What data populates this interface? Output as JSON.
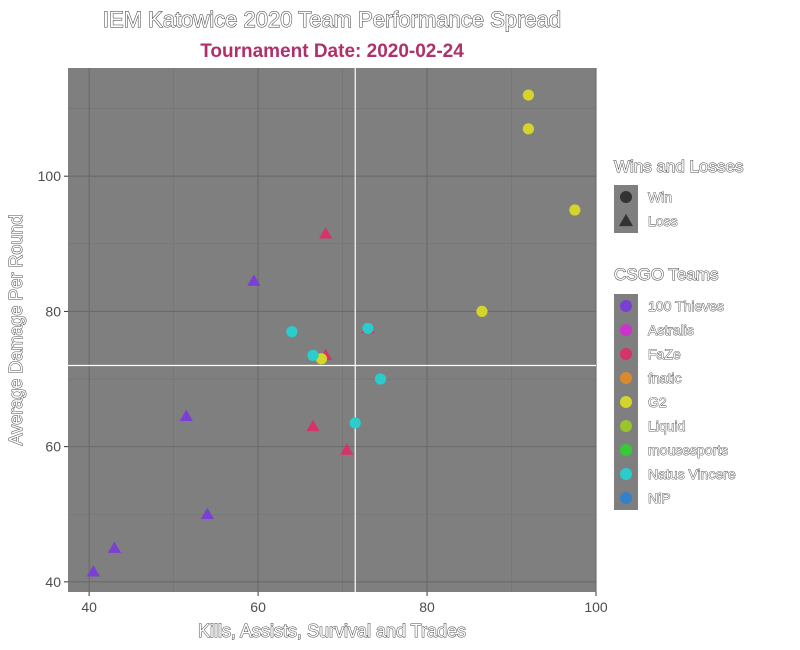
{
  "chart_data": {
    "type": "scatter",
    "title": "IEM Katowice 2020 Team Performance Spread",
    "subtitle": "Tournament Date: 2020-02-24",
    "xlabel": "Kills, Assists, Survival and Trades",
    "ylabel": "Average Damage Per Round",
    "xlim": [
      37.5,
      100
    ],
    "ylim": [
      38.5,
      116
    ],
    "x_ticks": [
      40,
      60,
      80,
      100
    ],
    "y_ticks": [
      40,
      60,
      80,
      100
    ],
    "x_minor_ticks": [
      50,
      70,
      90
    ],
    "y_minor_ticks": [
      50,
      70,
      90,
      110
    ],
    "reference_lines": {
      "x": 71.5,
      "y": 72
    },
    "grid": true,
    "panel_color": "#7f7f7f",
    "legend_position": "right",
    "shape_legend": {
      "title": "Wins and Losses",
      "items": [
        {
          "label": "Win",
          "shape": "circle"
        },
        {
          "label": "Loss",
          "shape": "triangle"
        }
      ]
    },
    "color_legend": {
      "title": "CSGO Teams",
      "items": [
        {
          "label": "100 Thieves",
          "color": "#7b3fd6"
        },
        {
          "label": "Astralis",
          "color": "#cc33cc"
        },
        {
          "label": "FaZe",
          "color": "#d6336b"
        },
        {
          "label": "fnatic",
          "color": "#d98a2b"
        },
        {
          "label": "G2",
          "color": "#d4d42a"
        },
        {
          "label": "Liquid",
          "color": "#99c42a"
        },
        {
          "label": "mousesports",
          "color": "#33cc33"
        },
        {
          "label": "Natus Vincere",
          "color": "#2bcccc"
        },
        {
          "label": "NiP",
          "color": "#3380cc"
        }
      ]
    },
    "points": [
      {
        "team": "100 Thieves",
        "result": "Loss",
        "x": 59.5,
        "y": 84.5
      },
      {
        "team": "100 Thieves",
        "result": "Loss",
        "x": 51.5,
        "y": 64.5
      },
      {
        "team": "100 Thieves",
        "result": "Loss",
        "x": 54,
        "y": 50
      },
      {
        "team": "100 Thieves",
        "result": "Loss",
        "x": 43,
        "y": 45
      },
      {
        "team": "100 Thieves",
        "result": "Loss",
        "x": 40.5,
        "y": 41.5
      },
      {
        "team": "FaZe",
        "result": "Loss",
        "x": 68,
        "y": 91.5
      },
      {
        "team": "FaZe",
        "result": "Loss",
        "x": 73,
        "y": 77.5
      },
      {
        "team": "FaZe",
        "result": "Loss",
        "x": 68,
        "y": 73.5
      },
      {
        "team": "FaZe",
        "result": "Loss",
        "x": 66.5,
        "y": 63
      },
      {
        "team": "FaZe",
        "result": "Loss",
        "x": 70.5,
        "y": 59.5
      },
      {
        "team": "G2",
        "result": "Win",
        "x": 92,
        "y": 112
      },
      {
        "team": "G2",
        "result": "Win",
        "x": 92,
        "y": 107
      },
      {
        "team": "G2",
        "result": "Win",
        "x": 97.5,
        "y": 95
      },
      {
        "team": "G2",
        "result": "Win",
        "x": 86.5,
        "y": 80
      },
      {
        "team": "G2",
        "result": "Win",
        "x": 67.5,
        "y": 73
      },
      {
        "team": "Natus Vincere",
        "result": "Win",
        "x": 64,
        "y": 77
      },
      {
        "team": "Natus Vincere",
        "result": "Win",
        "x": 73,
        "y": 77.5
      },
      {
        "team": "Natus Vincere",
        "result": "Win",
        "x": 66.5,
        "y": 73.5
      },
      {
        "team": "Natus Vincere",
        "result": "Win",
        "x": 74.5,
        "y": 70
      },
      {
        "team": "Natus Vincere",
        "result": "Win",
        "x": 71.5,
        "y": 63.5
      }
    ]
  }
}
